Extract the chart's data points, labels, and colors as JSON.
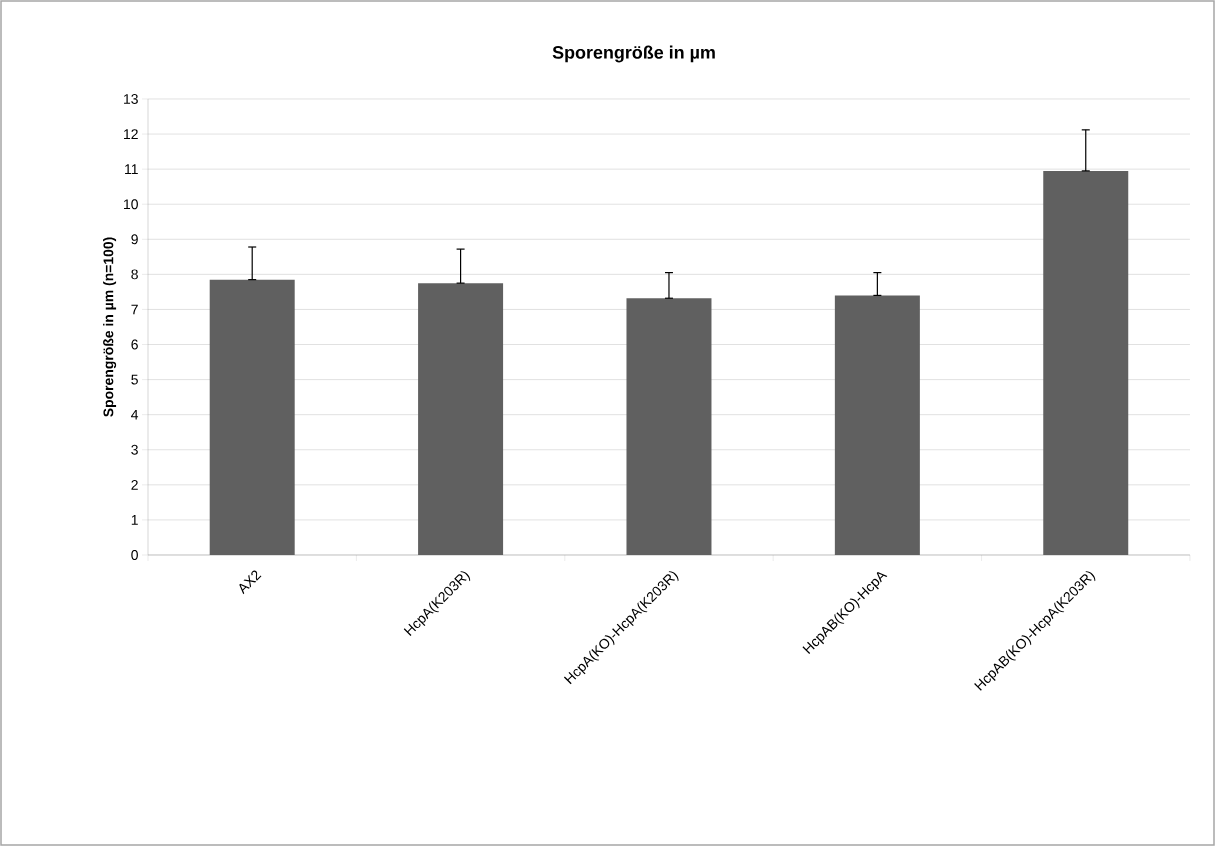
{
  "chart_data": {
    "type": "bar",
    "title": "Sporengröße in µm",
    "ylabel": "Sporengröße in µm (n=100)",
    "categories": [
      "AX2",
      "HcpA(K203R)",
      "HcpA(KO)-HcpA(K203R)",
      "HcpAB(KO)-HcpA",
      "HcpAB(KO)-HcpA(K203R)"
    ],
    "values": [
      7.85,
      7.75,
      7.32,
      7.4,
      10.95
    ],
    "errors": [
      [
        7.85,
        8.78
      ],
      [
        7.75,
        8.72
      ],
      [
        7.32,
        8.05
      ],
      [
        7.4,
        8.05
      ],
      [
        10.95,
        12.12
      ]
    ],
    "color": "#606060",
    "ylim": [
      0,
      13
    ],
    "yticks": [
      0,
      1,
      2,
      3,
      4,
      5,
      6,
      7,
      8,
      9,
      10,
      11,
      12,
      13
    ],
    "grid": "y"
  }
}
